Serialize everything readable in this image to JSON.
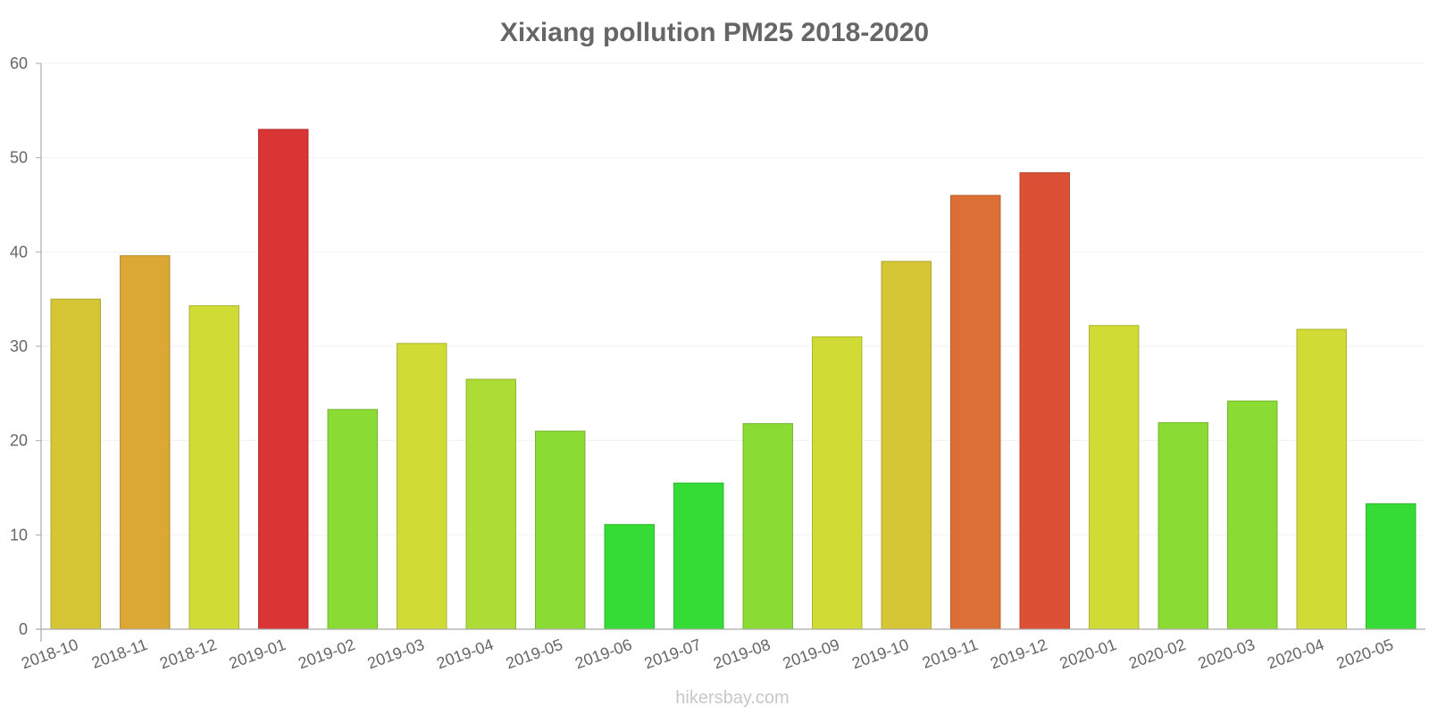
{
  "chart_data": {
    "type": "bar",
    "title": "Xixiang pollution PM25 2018-2020",
    "xlabel": "",
    "ylabel": "",
    "ylim": [
      0,
      60
    ],
    "yticks": [
      "0",
      "10",
      "20",
      "30",
      "40",
      "50",
      "60"
    ],
    "grid": true,
    "legend": "none",
    "categories": [
      "2018-10",
      "2018-11",
      "2018-12",
      "2019-01",
      "2019-02",
      "2019-03",
      "2019-04",
      "2019-05",
      "2019-06",
      "2019-07",
      "2019-08",
      "2019-09",
      "2019-10",
      "2019-11",
      "2019-12",
      "2020-01",
      "2020-02",
      "2020-03",
      "2020-04",
      "2020-05"
    ],
    "values": [
      35,
      39.6,
      34.3,
      53,
      23.3,
      30.3,
      26.5,
      21,
      11.1,
      15.5,
      21.8,
      31,
      39,
      46,
      48.4,
      32.2,
      21.9,
      24.2,
      31.8,
      13.3
    ],
    "bar_colors": [
      "#d6c535",
      "#dca835",
      "#d0dc35",
      "#da3535",
      "#8adc35",
      "#d0dc35",
      "#acdc35",
      "#8adc35",
      "#35dc35",
      "#35dc35",
      "#8adc35",
      "#d0dc35",
      "#d6c535",
      "#dc6f35",
      "#dc5135",
      "#d0dc35",
      "#8adc35",
      "#8adc35",
      "#d0dc35",
      "#35dc35"
    ]
  },
  "watermark": "hikersbay.com"
}
